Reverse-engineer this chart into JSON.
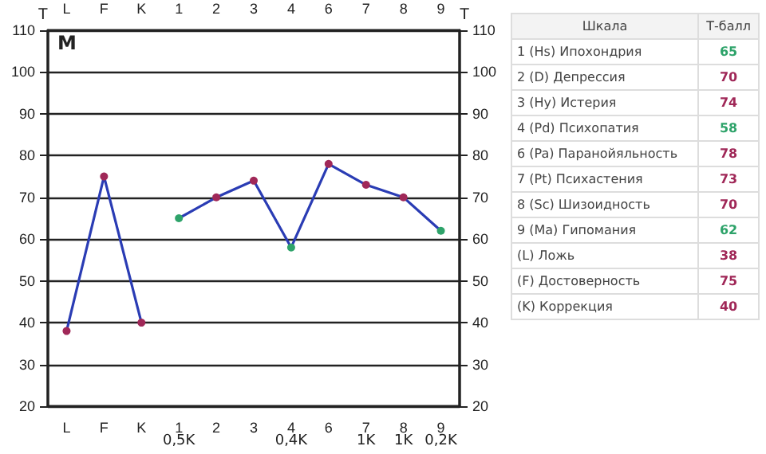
{
  "chart_data": [
    {
      "type": "line",
      "categories": [
        "L",
        "F",
        "K",
        "1",
        "2",
        "3",
        "4",
        "6",
        "7",
        "8",
        "9"
      ],
      "series": [
        {
          "color": "#2a3cb4",
          "values": [
            38,
            75,
            40,
            null,
            null,
            null,
            null,
            null,
            null,
            null,
            null
          ],
          "colors": [
            "#a02858",
            "#a02858",
            "#a02858",
            null,
            null,
            null,
            null,
            null,
            null,
            null,
            null
          ]
        },
        {
          "color": "#2a3cb4",
          "values": [
            null,
            null,
            null,
            65,
            70,
            74,
            58,
            78,
            73,
            70,
            62
          ],
          "colors": [
            null,
            null,
            null,
            "#2ea36a",
            "#a02858",
            "#a02858",
            "#2ea36a",
            "#a02858",
            "#a02858",
            "#a02858",
            "#2ea36a"
          ]
        }
      ],
      "ylim": [
        20,
        110
      ],
      "yticks": [
        20,
        30,
        40,
        50,
        60,
        70,
        80,
        90,
        100,
        110
      ],
      "y2lim": [
        20,
        110
      ],
      "y2ticks": [
        20,
        30,
        40,
        50,
        60,
        70,
        80,
        90,
        100,
        110
      ],
      "ylabel": "T",
      "y2label": "T",
      "grid": "y",
      "marker": "circle",
      "line_style": "solid",
      "annotations": [
        "M",
        "0,5K",
        "0,4K",
        "1K",
        "1K",
        "0,2K"
      ]
    },
    {
      "type": "other",
      "categories": [
        "1 (Hs) Ипохондрия",
        "2 (D) Депрессия",
        "3 (Hy) Истерия",
        "4 (Pd) Психопатия",
        "6 (Pa) Паранойяльность",
        "7 (Pt) Психастения",
        "8 (Sc) Шизоидность",
        "9 (Ma) Гипомания",
        "(L) Ложь",
        "(F) Достоверность",
        "(K) Коррекция"
      ],
      "values": [
        65,
        70,
        74,
        58,
        78,
        73,
        70,
        62,
        38,
        75,
        40
      ],
      "colors": [
        "#2ea36a",
        "#a02858",
        "#a02858",
        "#2ea36a",
        "#a02858",
        "#a02858",
        "#a02858",
        "#2ea36a",
        "#a02858",
        "#a02858",
        "#a02858"
      ],
      "data_labels": true,
      "annotations": [
        "Шкала",
        "Т-балл"
      ]
    }
  ]
}
